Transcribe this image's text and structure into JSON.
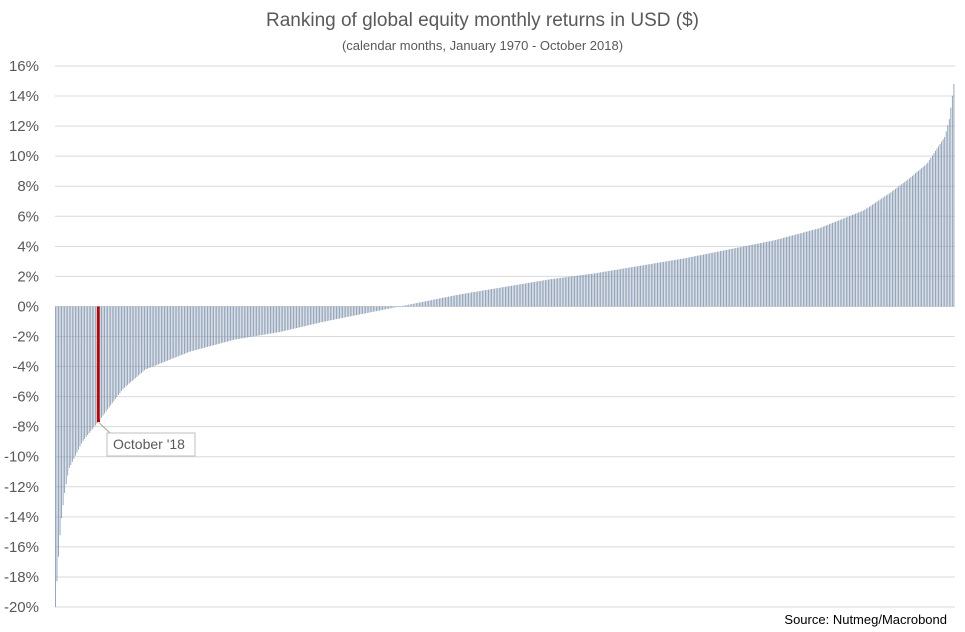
{
  "chart_data": {
    "type": "bar",
    "title": "Ranking of global equity monthly returns in USD ($)",
    "subtitle": "(calendar months, January 1970 - October 2018)",
    "source": "Source: Nutmeg/Macrobond",
    "ylim": [
      -20,
      16
    ],
    "yticks": [
      "16%",
      "14%",
      "12%",
      "10%",
      "8%",
      "6%",
      "4%",
      "2%",
      "0%",
      "-2%",
      "-4%",
      "-6%",
      "-8%",
      "-10%",
      "-12%",
      "-14%",
      "-16%",
      "-18%",
      "-20%"
    ],
    "ytick_values": [
      16,
      14,
      12,
      10,
      8,
      6,
      4,
      2,
      0,
      -2,
      -4,
      -6,
      -8,
      -10,
      -12,
      -14,
      -16,
      -18,
      -20
    ],
    "grid": true,
    "bar_color": "#8497b0",
    "highlight_color": "#c00000",
    "n_months": 586,
    "highlight": {
      "label": "October '18",
      "value": -7.7
    },
    "quantile_curve": {
      "rank_fraction": [
        0,
        0.003,
        0.006,
        0.01,
        0.015,
        0.02,
        0.03,
        0.05,
        0.075,
        0.1,
        0.15,
        0.2,
        0.25,
        0.3,
        0.35,
        0.4,
        0.45,
        0.5,
        0.55,
        0.6,
        0.65,
        0.7,
        0.75,
        0.8,
        0.85,
        0.9,
        0.93,
        0.95,
        0.97,
        0.98,
        0.99,
        0.995,
        1
      ],
      "returns_pct": [
        -20,
        -17,
        -14.5,
        -12.5,
        -10.8,
        -10.2,
        -9.0,
        -7.5,
        -5.5,
        -4.2,
        -3.0,
        -2.2,
        -1.7,
        -1.0,
        -0.4,
        0.2,
        0.8,
        1.3,
        1.8,
        2.2,
        2.7,
        3.2,
        3.8,
        4.4,
        5.2,
        6.4,
        7.6,
        8.5,
        9.5,
        10.4,
        11.3,
        12.5,
        14.8
      ]
    }
  }
}
